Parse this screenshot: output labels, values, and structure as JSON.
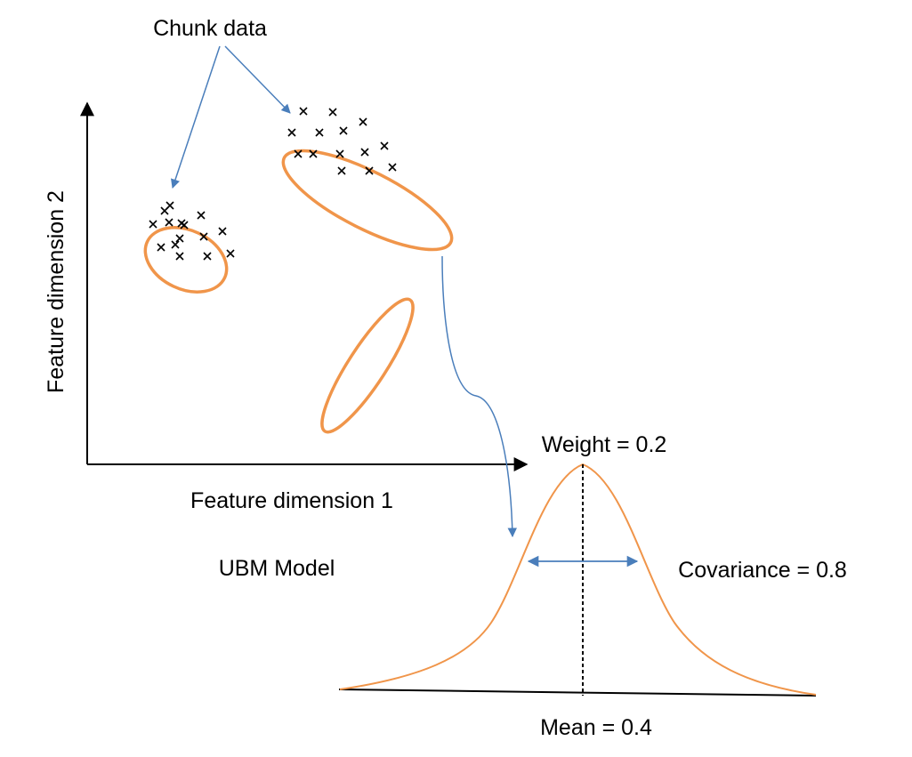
{
  "labels": {
    "chunk_data": "Chunk data",
    "x_axis": "Feature dimension 1",
    "y_axis": "Feature dimension 2",
    "model": "UBM Model",
    "weight": "Weight = 0.2",
    "covariance": "Covariance = 0.8",
    "mean": "Mean = 0.4"
  },
  "colors": {
    "ellipse": "#F0954A",
    "gaussian": "#F0954A",
    "arrow": "#4A7EBB",
    "axis": "#000000",
    "point": "#000000"
  },
  "icons": {
    "data_point": "cross-icon"
  }
}
